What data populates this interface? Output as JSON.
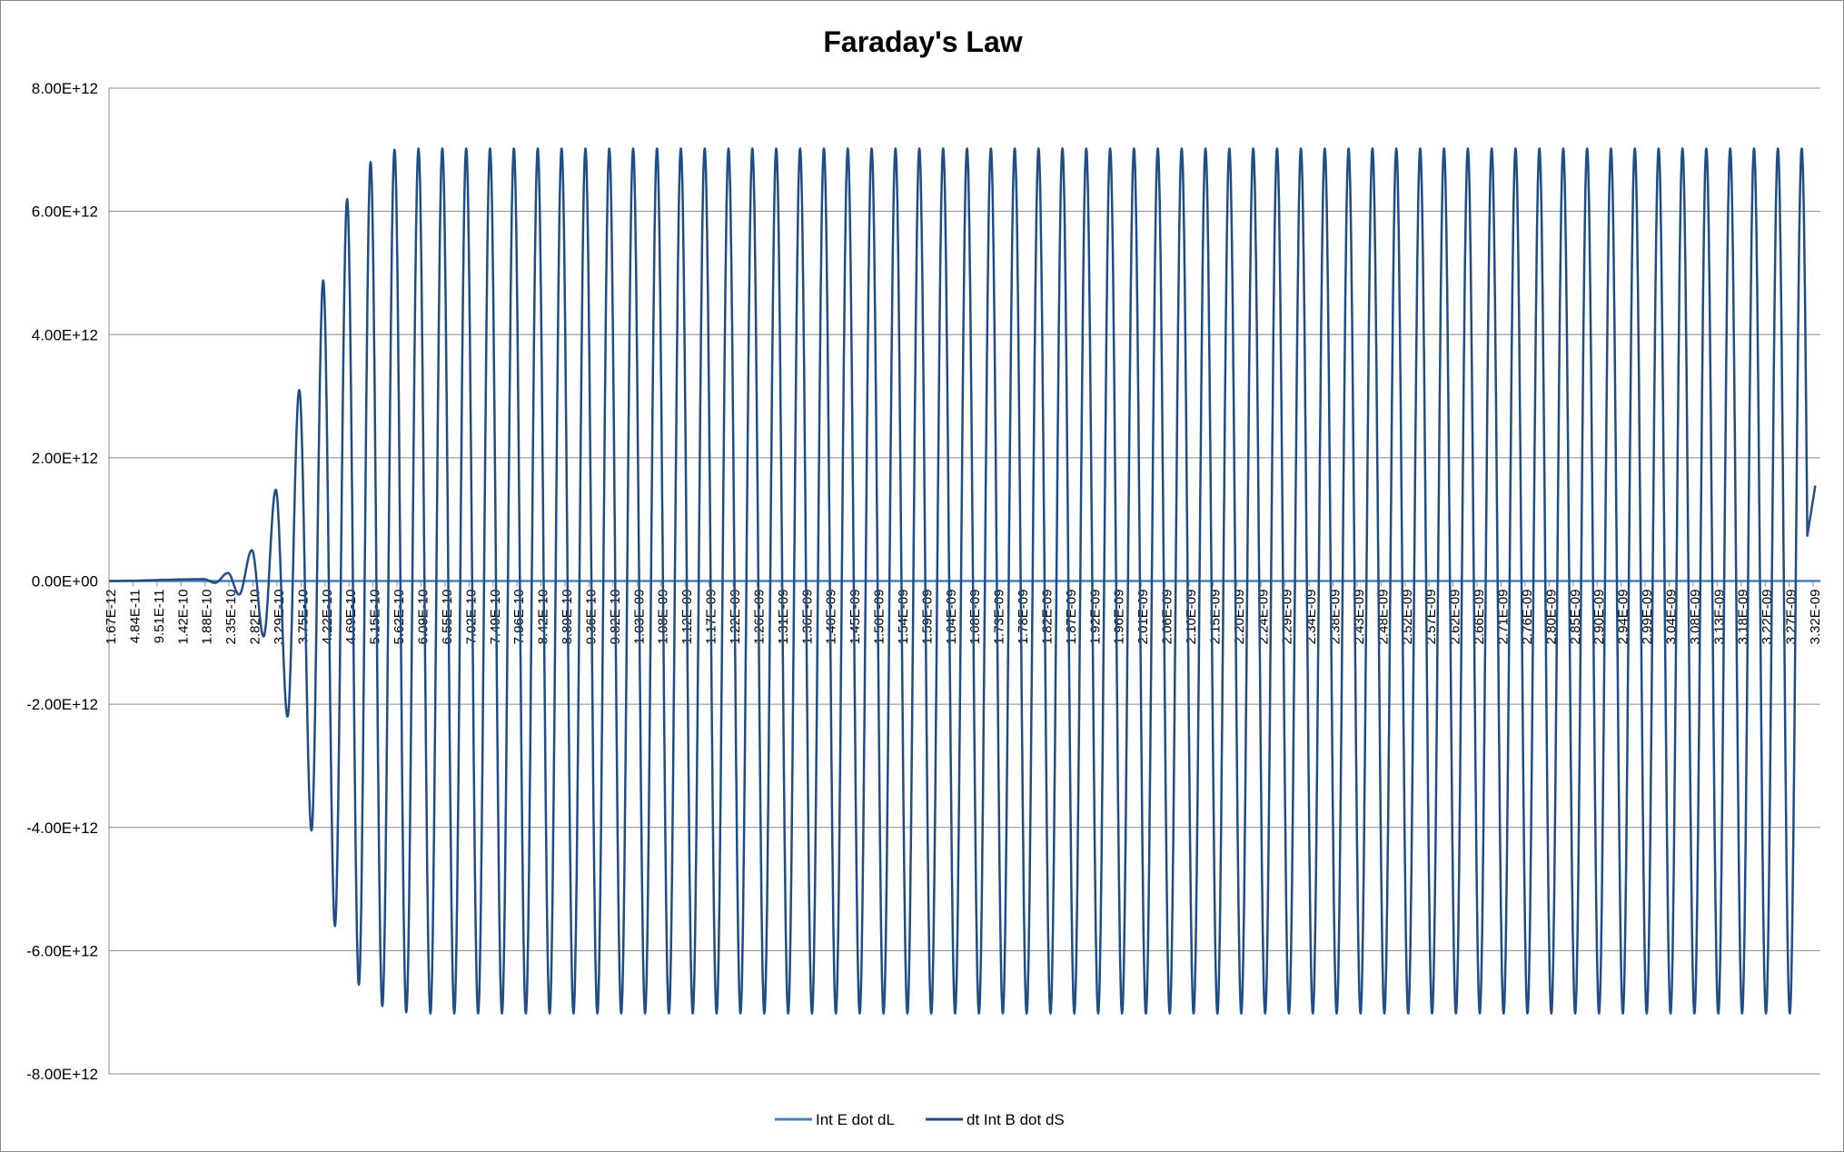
{
  "chart_data": {
    "type": "line",
    "title": "Faraday's Law",
    "xlabel": "",
    "ylabel": "",
    "ylim": [
      -8000000000000.0,
      8000000000000.0
    ],
    "y_ticks": [
      "8.00E+12",
      "6.00E+12",
      "4.00E+12",
      "2.00E+12",
      "0.00E+00",
      "-2.00E+12",
      "-4.00E+12",
      "-6.00E+12",
      "-8.00E+12"
    ],
    "y_tick_values": [
      8000000000000.0,
      6000000000000.0,
      4000000000000.0,
      2000000000000.0,
      0,
      -2000000000000.0,
      -4000000000000.0,
      -6000000000000.0,
      -8000000000000.0
    ],
    "x_range": [
      1.67e-12,
      3.36e-09
    ],
    "x_tick_labels": [
      "1.67E-12",
      "4.84E-11",
      "9.51E-11",
      "1.42E-10",
      "1.88E-10",
      "2.35E-10",
      "2.82E-10",
      "3.29E-10",
      "3.75E-10",
      "4.22E-10",
      "4.69E-10",
      "5.15E-10",
      "5.62E-10",
      "6.09E-10",
      "6.55E-10",
      "7.02E-10",
      "7.49E-10",
      "7.96E-10",
      "8.42E-10",
      "8.89E-10",
      "9.36E-10",
      "9.82E-10",
      "1.03E-09",
      "1.08E-09",
      "1.12E-09",
      "1.17E-09",
      "1.22E-09",
      "1.26E-09",
      "1.31E-09",
      "1.36E-09",
      "1.40E-09",
      "1.45E-09",
      "1.50E-09",
      "1.54E-09",
      "1.59E-09",
      "1.64E-09",
      "1.68E-09",
      "1.73E-09",
      "1.78E-09",
      "1.82E-09",
      "1.87E-09",
      "1.92E-09",
      "1.96E-09",
      "2.01E-09",
      "2.06E-09",
      "2.10E-09",
      "2.15E-09",
      "2.20E-09",
      "2.24E-09",
      "2.29E-09",
      "2.34E-09",
      "2.38E-09",
      "2.43E-09",
      "2.48E-09",
      "2.52E-09",
      "2.57E-09",
      "2.62E-09",
      "2.66E-09",
      "2.71E-09",
      "2.76E-09",
      "2.80E-09",
      "2.85E-09",
      "2.90E-09",
      "2.94E-09",
      "2.99E-09",
      "3.04E-09",
      "3.08E-09",
      "3.13E-09",
      "3.18E-09",
      "3.22E-09",
      "3.27E-09",
      "3.32E-09"
    ],
    "grid": true,
    "legend_position": "bottom",
    "series": [
      {
        "name": "Int E dot dL",
        "color": "#4a7ebb",
        "note_values": "constant",
        "points": [
          [
            1.67e-12,
            0
          ],
          [
            3.36e-09,
            0
          ]
        ]
      },
      {
        "name": "dt Int B dot dS",
        "color": "#1f4e86",
        "peaks": [
          [
            1.67e-12,
            0
          ],
          [
            1.88e-10,
            30000000000.0
          ],
          [
            2.1e-10,
            -30000000000.0
          ],
          [
            2.35e-10,
            130000000000.0
          ],
          [
            2.57e-10,
            -220000000000.0
          ],
          [
            2.82e-10,
            500000000000.0
          ],
          [
            3.05e-10,
            -900000000000.0
          ],
          [
            3.29e-10,
            1480000000000.0
          ],
          [
            3.52e-10,
            -2200000000000.0
          ],
          [
            3.75e-10,
            3100000000000.0
          ],
          [
            3.99e-10,
            -4050000000000.0
          ],
          [
            4.22e-10,
            4880000000000.0
          ],
          [
            4.45e-10,
            -5600000000000.0
          ],
          [
            4.69e-10,
            6200000000000.0
          ],
          [
            4.92e-10,
            -6550000000000.0
          ],
          [
            5.15e-10,
            6800000000000.0
          ],
          [
            5.38e-10,
            -6900000000000.0
          ],
          [
            5.62e-10,
            7000000000000.0
          ],
          [
            5.85e-10,
            -7000000000000.0
          ],
          [
            6.09e-10,
            7020000000000.0
          ],
          [
            3.36e-09,
            7020000000000.0
          ]
        ],
        "steady_amplitude": 7020000000000.0,
        "steady_period": 4.68e-11,
        "end_value": 1550000000000.0
      }
    ]
  }
}
